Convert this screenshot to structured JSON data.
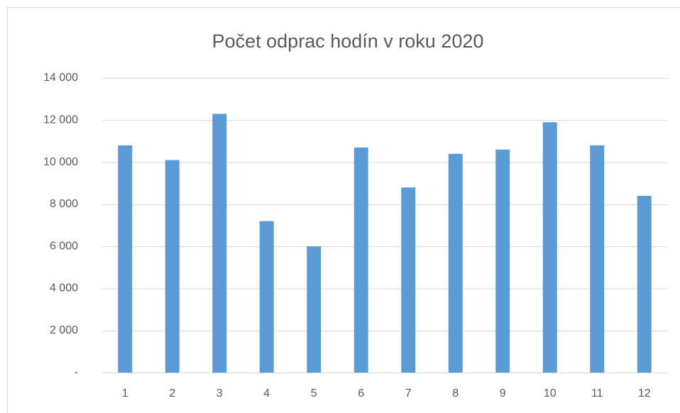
{
  "chart_data": {
    "type": "bar",
    "title": "Počet odprac hodín v roku 2020",
    "categories": [
      "1",
      "2",
      "3",
      "4",
      "5",
      "6",
      "7",
      "8",
      "9",
      "10",
      "11",
      "12"
    ],
    "values": [
      10800,
      10100,
      12300,
      7200,
      6000,
      10700,
      8800,
      10400,
      10600,
      11900,
      10800,
      8400
    ],
    "color": "#5b9bd5",
    "ylim": [
      0,
      14000
    ],
    "yticks": [
      {
        "value": 0,
        "label": "-"
      },
      {
        "value": 2000,
        "label": "2 000"
      },
      {
        "value": 4000,
        "label": "4 000"
      },
      {
        "value": 6000,
        "label": "6 000"
      },
      {
        "value": 8000,
        "label": "8 000"
      },
      {
        "value": 10000,
        "label": "10 000"
      },
      {
        "value": 12000,
        "label": "12 000"
      },
      {
        "value": 14000,
        "label": "14 000"
      }
    ],
    "grid": true
  }
}
